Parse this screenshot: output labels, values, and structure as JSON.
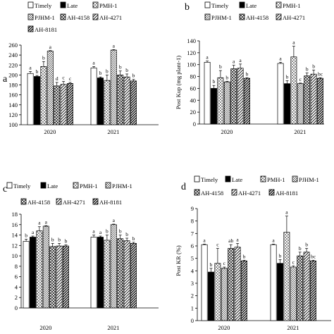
{
  "chart_data": [
    {
      "panel": "a",
      "type": "bar",
      "ylabel": "",
      "ylim": [
        100,
        260
      ],
      "yticks": [
        100,
        120,
        140,
        160,
        180,
        200,
        220,
        240,
        260
      ],
      "categories": [
        "2020",
        "2021"
      ],
      "series": [
        {
          "name": "Timely",
          "values": [
            203,
            214
          ],
          "errors": [
            4,
            3
          ],
          "letters": [
            "a",
            "a"
          ]
        },
        {
          "name": "Late",
          "values": [
            197,
            194
          ],
          "errors": [
            2,
            2
          ],
          "letters": [
            "b",
            "b"
          ]
        },
        {
          "name": "PMH-1",
          "values": [
            217,
            189
          ],
          "errors": [
            10,
            11
          ],
          "letters": [
            "b",
            "b"
          ]
        },
        {
          "name": "PJHM-1",
          "values": [
            248,
            250
          ],
          "errors": [
            1,
            1
          ],
          "letters": [
            "a",
            "a"
          ]
        },
        {
          "name": "AH-4158",
          "values": [
            178,
            200
          ],
          "errors": [
            7,
            8
          ],
          "letters": [
            "d",
            "b"
          ]
        },
        {
          "name": "AH-4271",
          "values": [
            181,
            196
          ],
          "errors": [
            6,
            6
          ],
          "letters": [
            "c",
            "b"
          ]
        },
        {
          "name": "AH-8181",
          "values": [
            183,
            188
          ],
          "errors": [
            2,
            3
          ],
          "letters": [
            "c",
            "b"
          ]
        }
      ]
    },
    {
      "panel": "b",
      "type": "bar",
      "ylabel": "Post Kup (mg plant-1)",
      "ylim": [
        0,
        140
      ],
      "yticks": [
        0,
        20,
        40,
        60,
        80,
        100,
        120,
        140
      ],
      "categories": [
        "2020",
        "2021"
      ],
      "series": [
        {
          "name": "Timely",
          "values": [
            104,
            102
          ],
          "errors": [
            2,
            2
          ],
          "letters": [
            "a",
            "a"
          ]
        },
        {
          "name": "Late",
          "values": [
            60,
            68
          ],
          "errors": [
            5,
            5
          ],
          "letters": [
            "b",
            "b"
          ]
        },
        {
          "name": "PMH-1",
          "values": [
            78,
            113
          ],
          "errors": [
            12,
            18
          ],
          "letters": [
            "b",
            "a"
          ]
        },
        {
          "name": "PJHM-1",
          "values": [
            71,
            68
          ],
          "errors": [
            1,
            1
          ],
          "letters": [
            "b",
            "c"
          ]
        },
        {
          "name": "AH-4158",
          "values": [
            93,
            81
          ],
          "errors": [
            6,
            5
          ],
          "letters": [
            "a",
            "b"
          ]
        },
        {
          "name": "AH-4271",
          "values": [
            94,
            84
          ],
          "errors": [
            7,
            7
          ],
          "letters": [
            "a",
            "b"
          ]
        },
        {
          "name": "AH-8181",
          "values": [
            77,
            77
          ],
          "errors": [
            1,
            1
          ],
          "letters": [
            "b",
            "bc"
          ]
        }
      ]
    },
    {
      "panel": "c",
      "type": "bar",
      "ylabel": "",
      "ylim": [
        0,
        18
      ],
      "yticks": [
        0,
        2,
        4,
        6,
        8,
        10,
        12,
        14,
        16,
        18
      ],
      "categories": [
        "2020",
        "2021"
      ],
      "series": [
        {
          "name": "Timely",
          "values": [
            12.8,
            13.6
          ],
          "errors": [
            0.4,
            0.4
          ],
          "letters": [
            "b",
            "a"
          ]
        },
        {
          "name": "Late",
          "values": [
            13.6,
            13.6
          ],
          "errors": [
            0.2,
            0.2
          ],
          "letters": [
            "a",
            "a"
          ]
        },
        {
          "name": "PMH-1",
          "values": [
            14.8,
            13.0
          ],
          "errors": [
            0.8,
            1.0
          ],
          "letters": [
            "a",
            "b"
          ]
        },
        {
          "name": "PJHM-1",
          "values": [
            15.7,
            16.0
          ],
          "errors": [
            0.1,
            0.1
          ],
          "letters": [
            "a",
            "a"
          ]
        },
        {
          "name": "AH-4158",
          "values": [
            11.8,
            13.3
          ],
          "errors": [
            0.6,
            0.7
          ],
          "letters": [
            "b",
            "b"
          ]
        },
        {
          "name": "AH-4271",
          "values": [
            11.9,
            12.9
          ],
          "errors": [
            0.5,
            0.5
          ],
          "letters": [
            "b",
            "b"
          ]
        },
        {
          "name": "AH-8181",
          "values": [
            11.9,
            12.4
          ],
          "errors": [
            0.2,
            0.2
          ],
          "letters": [
            "b",
            "b"
          ]
        }
      ]
    },
    {
      "panel": "d",
      "type": "bar",
      "ylabel": "Post KR (%)",
      "ylim": [
        0,
        9
      ],
      "yticks": [
        0,
        1,
        2,
        3,
        4,
        5,
        6,
        7,
        8,
        9
      ],
      "categories": [
        "2020",
        "2021"
      ],
      "series": [
        {
          "name": "Timely",
          "values": [
            6.1,
            6.1
          ],
          "errors": [
            0.05,
            0.05
          ],
          "letters": [
            "a",
            "a"
          ]
        },
        {
          "name": "Late",
          "values": [
            3.9,
            4.6
          ],
          "errors": [
            0.3,
            0.3
          ],
          "letters": [
            "b",
            "b"
          ]
        },
        {
          "name": "PMH-1",
          "values": [
            4.6,
            7.1
          ],
          "errors": [
            1.2,
            1.3
          ],
          "letters": [
            "c",
            "a"
          ]
        },
        {
          "name": "PJHM-1",
          "values": [
            4.2,
            4.3
          ],
          "errors": [
            0.1,
            0.1
          ],
          "letters": [
            "c",
            "c"
          ]
        },
        {
          "name": "AH-4158",
          "values": [
            5.8,
            5.2
          ],
          "errors": [
            0.3,
            0.3
          ],
          "letters": [
            "ab",
            "b"
          ]
        },
        {
          "name": "AH-4271",
          "values": [
            5.9,
            5.5
          ],
          "errors": [
            0.3,
            0.3
          ],
          "letters": [
            "a",
            "b"
          ]
        },
        {
          "name": "AH-8181",
          "values": [
            4.8,
            4.8
          ],
          "errors": [
            0.05,
            0.05
          ],
          "letters": [
            "b",
            "bc"
          ]
        }
      ]
    }
  ]
}
